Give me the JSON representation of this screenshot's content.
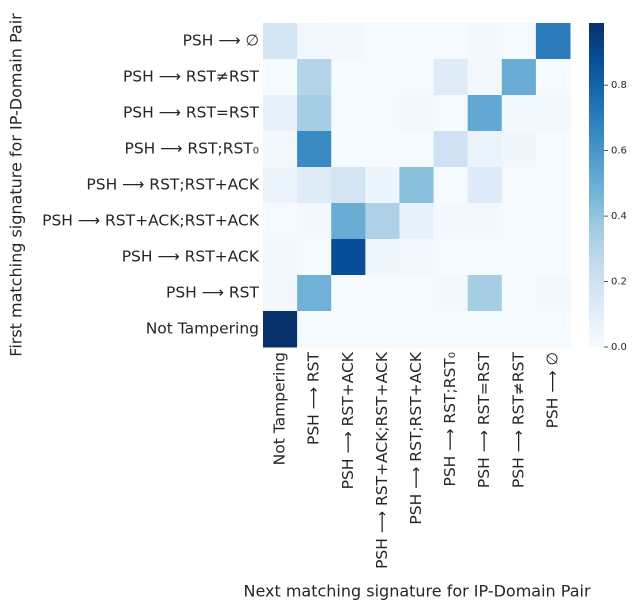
{
  "chart_data": {
    "type": "heatmap",
    "xlabel": "Next matching signature for IP-Domain Pair",
    "ylabel": "First matching signature for IP-Domain Pair",
    "x_categories": [
      "Not Tampering",
      "PSH ⟶ RST",
      "PSH ⟶ RST+ACK",
      "PSH ⟶ RST+ACK;RST+ACK",
      "PSH ⟶ RST;RST+ACK",
      "PSH ⟶ RST;RST₀",
      "PSH ⟶ RST=RST",
      "PSH ⟶ RST≠RST",
      "PSH ⟶ ∅"
    ],
    "y_categories": [
      "PSH ⟶ ∅",
      "PSH ⟶ RST≠RST",
      "PSH ⟶ RST=RST",
      "PSH ⟶ RST;RST₀",
      "PSH ⟶ RST;RST+ACK",
      "PSH ⟶ RST+ACK;RST+ACK",
      "PSH ⟶ RST+ACK",
      "PSH ⟶ RST",
      "Not Tampering"
    ],
    "values": [
      [
        0.18,
        0.03,
        0.02,
        0.01,
        0.01,
        0.01,
        0.02,
        0.01,
        0.7
      ],
      [
        0.01,
        0.3,
        0.01,
        0.01,
        0.01,
        0.12,
        0.02,
        0.5,
        0.01
      ],
      [
        0.08,
        0.35,
        0.01,
        0.01,
        0.02,
        0.01,
        0.52,
        0.02,
        0.02
      ],
      [
        0.02,
        0.65,
        0.01,
        0.01,
        0.01,
        0.2,
        0.06,
        0.04,
        0.01
      ],
      [
        0.05,
        0.12,
        0.18,
        0.05,
        0.42,
        0.01,
        0.13,
        0.01,
        0.01
      ],
      [
        0.01,
        0.02,
        0.5,
        0.32,
        0.08,
        0.02,
        0.02,
        0.01,
        0.01
      ],
      [
        0.03,
        0.01,
        0.88,
        0.04,
        0.02,
        0.01,
        0.01,
        0.01,
        0.01
      ],
      [
        0.02,
        0.48,
        0.01,
        0.01,
        0.01,
        0.02,
        0.35,
        0.01,
        0.02
      ],
      [
        0.99,
        0.01,
        0.01,
        0.01,
        0.01,
        0.01,
        0.01,
        0.01,
        0.01
      ]
    ],
    "colormap": "Blues",
    "clim": [
      0,
      0.99
    ],
    "cticks": [
      {
        "value": 0,
        "label": "0.0"
      },
      0.2,
      0.4,
      0.6,
      0.8
    ]
  }
}
